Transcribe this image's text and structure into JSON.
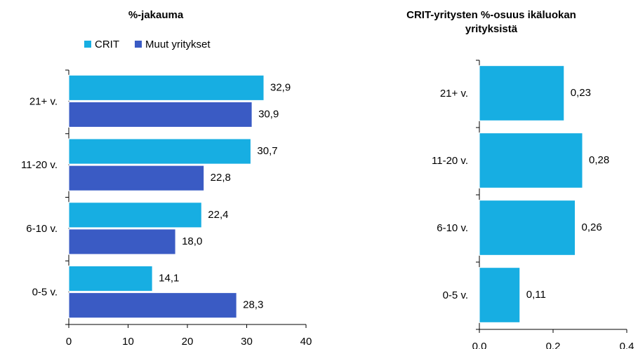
{
  "chart_data": [
    {
      "type": "hbar",
      "title": "%-jakauma",
      "categories": [
        "21+ v.",
        "11-20 v.",
        "6-10 v.",
        "0-5 v."
      ],
      "series": [
        {
          "name": "CRIT",
          "color": "#17aee2",
          "values": [
            32.9,
            30.7,
            22.4,
            14.1
          ],
          "value_labels": [
            "32,9",
            "30,7",
            "22,4",
            "14,1"
          ]
        },
        {
          "name": "Muut yritykset",
          "color": "#3a5bc4",
          "values": [
            30.9,
            22.8,
            18.0,
            28.3
          ],
          "value_labels": [
            "30,9",
            "22,8",
            "18,0",
            "28,3"
          ]
        }
      ],
      "xlim": [
        0,
        40
      ],
      "xticks": [
        0,
        10,
        20,
        30,
        40
      ],
      "legend": "top"
    },
    {
      "type": "hbar",
      "title": [
        "CRIT-yritysten %-osuus ikäluokan",
        "yrityksistä"
      ],
      "categories": [
        "21+ v.",
        "11-20 v.",
        "6-10 v.",
        "0-5 v."
      ],
      "values": [
        0.23,
        0.28,
        0.26,
        0.11
      ],
      "value_labels": [
        "0,23",
        "0,28",
        "0,26",
        "0,11"
      ],
      "color": "#17aee2",
      "xlim": [
        0,
        0.4
      ],
      "xticks": [
        {
          "value": 0,
          "label": "0,0"
        },
        {
          "value": 0.2,
          "label": "0,2"
        },
        {
          "value": 0.4,
          "label": "0,4"
        }
      ]
    }
  ]
}
